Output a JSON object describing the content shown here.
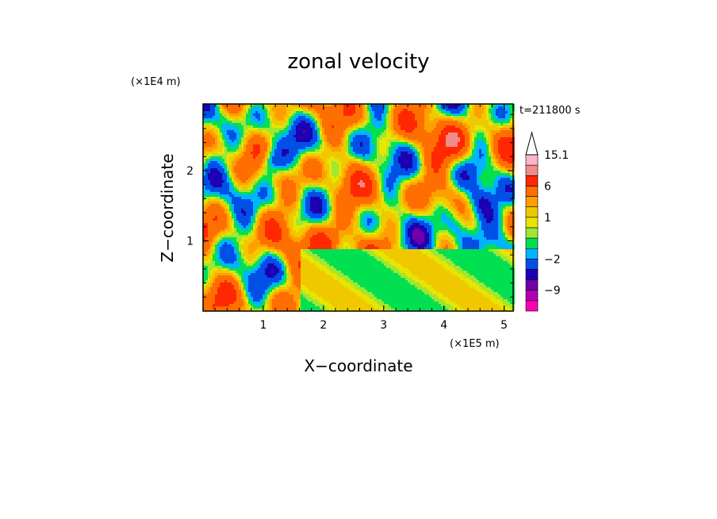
{
  "chart_data": {
    "type": "heatmap",
    "title": "zonal velocity",
    "xlabel": "X−coordinate",
    "ylabel": "Z−coordinate",
    "x_unit": "(×1E5 m)",
    "y_unit": "(×1E4 m)",
    "time_label": "t=211800 s",
    "xlim": [
      0,
      5.15
    ],
    "ylim": [
      0,
      2.95
    ],
    "x_ticks": [
      1,
      2,
      3,
      4,
      5
    ],
    "y_ticks": [
      1,
      2
    ],
    "colorbar": {
      "labels": [
        {
          "value": 15.1,
          "text": "15.1"
        },
        {
          "value": 6,
          "text": "6"
        },
        {
          "value": 1,
          "text": "1"
        },
        {
          "value": -2,
          "text": "−2"
        },
        {
          "value": -9,
          "text": "−9"
        }
      ],
      "bands": [
        {
          "color": "#ff00b4",
          "lower": -15,
          "upper": -12
        },
        {
          "color": "#b400b4",
          "lower": -12,
          "upper": -9
        },
        {
          "color": "#7000a8",
          "lower": -9,
          "upper": -6
        },
        {
          "color": "#1e00b4",
          "lower": -6,
          "upper": -4
        },
        {
          "color": "#0050e6",
          "lower": -4,
          "upper": -2
        },
        {
          "color": "#00b4ff",
          "lower": -2,
          "upper": -1
        },
        {
          "color": "#00e050",
          "lower": -1,
          "upper": 0
        },
        {
          "color": "#a0e632",
          "lower": 0,
          "upper": 0.5
        },
        {
          "color": "#e6e600",
          "lower": 0.5,
          "upper": 1
        },
        {
          "color": "#f0c800",
          "lower": 1,
          "upper": 2
        },
        {
          "color": "#ffa000",
          "lower": 2,
          "upper": 3
        },
        {
          "color": "#ff6e00",
          "lower": 3,
          "upper": 6
        },
        {
          "color": "#ff2800",
          "lower": 6,
          "upper": 9
        },
        {
          "color": "#f08c8c",
          "lower": 9,
          "upper": 12
        },
        {
          "color": "#ffb4c8",
          "lower": 12,
          "upper": 15.1
        }
      ],
      "extend_max": true
    },
    "grid": false
  }
}
